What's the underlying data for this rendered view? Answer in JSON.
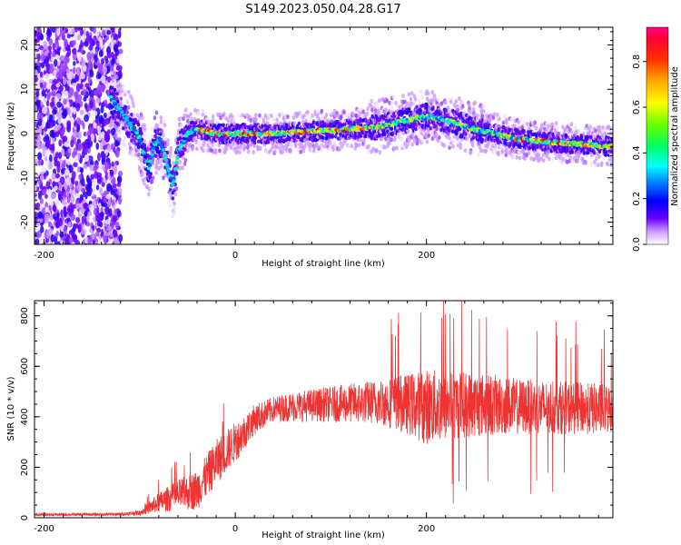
{
  "title": "S149.2023.050.04.28.G17",
  "colors": {
    "snr_line": "#ee3333",
    "frame": "#000000"
  },
  "chart_data": [
    {
      "type": "heatmap",
      "xlabel": "Height of straight line (km)",
      "ylabel": "Frequency (Hz)",
      "xlim": [
        -210,
        395
      ],
      "ylim": [
        -25,
        24
      ],
      "xticks": [
        -200,
        0,
        200
      ],
      "yticks": [
        -20,
        -10,
        0,
        10,
        20
      ],
      "grid": false,
      "colorbar": {
        "label": "Normalized spectral amplitude",
        "range": [
          0,
          0.95
        ],
        "ticks": [
          0.0,
          0.2,
          0.4,
          0.6,
          0.8
        ],
        "colormap": [
          "#ffffff",
          "#6600ff",
          "#0000ff",
          "#00ffff",
          "#00ff00",
          "#ffff00",
          "#ff8800",
          "#ff0000",
          "#ff0088"
        ]
      },
      "ridge": {
        "x": [
          -130,
          -120,
          -110,
          -100,
          -95,
          -90,
          -85,
          -80,
          -75,
          -70,
          -65,
          -60,
          -55,
          -50,
          -40,
          -20,
          0,
          40,
          80,
          120,
          150,
          180,
          200,
          220,
          250,
          290,
          330,
          370,
          395
        ],
        "y": [
          8,
          5,
          2,
          -1,
          -5,
          -8,
          -3,
          -1,
          -4,
          -8,
          -12,
          -4,
          -2,
          0,
          1,
          0,
          0,
          0,
          0.5,
          1,
          1.5,
          3,
          4,
          3,
          1,
          -1,
          -2,
          -2.5,
          -3
        ]
      }
    },
    {
      "type": "line",
      "xlabel": "Height of straight line (km)",
      "ylabel": "SNR (10 * v/v)",
      "xlim": [
        -210,
        395
      ],
      "ylim": [
        0,
        860
      ],
      "xticks": [
        -200,
        0,
        200
      ],
      "yticks": [
        0,
        200,
        400,
        600,
        800
      ],
      "grid": false,
      "envelope": {
        "x": [
          -210,
          -120,
          -100,
          -80,
          -60,
          -40,
          -20,
          0,
          10,
          20,
          40,
          60,
          100,
          150,
          180,
          200,
          250,
          300,
          395
        ],
        "mean": [
          12,
          14,
          20,
          60,
          90,
          110,
          220,
          300,
          340,
          390,
          430,
          440,
          450,
          460,
          450,
          440,
          450,
          440,
          430
        ],
        "spread": [
          5,
          6,
          10,
          40,
          60,
          80,
          90,
          80,
          70,
          60,
          50,
          60,
          70,
          90,
          120,
          150,
          130,
          110,
          100
        ]
      }
    }
  ]
}
